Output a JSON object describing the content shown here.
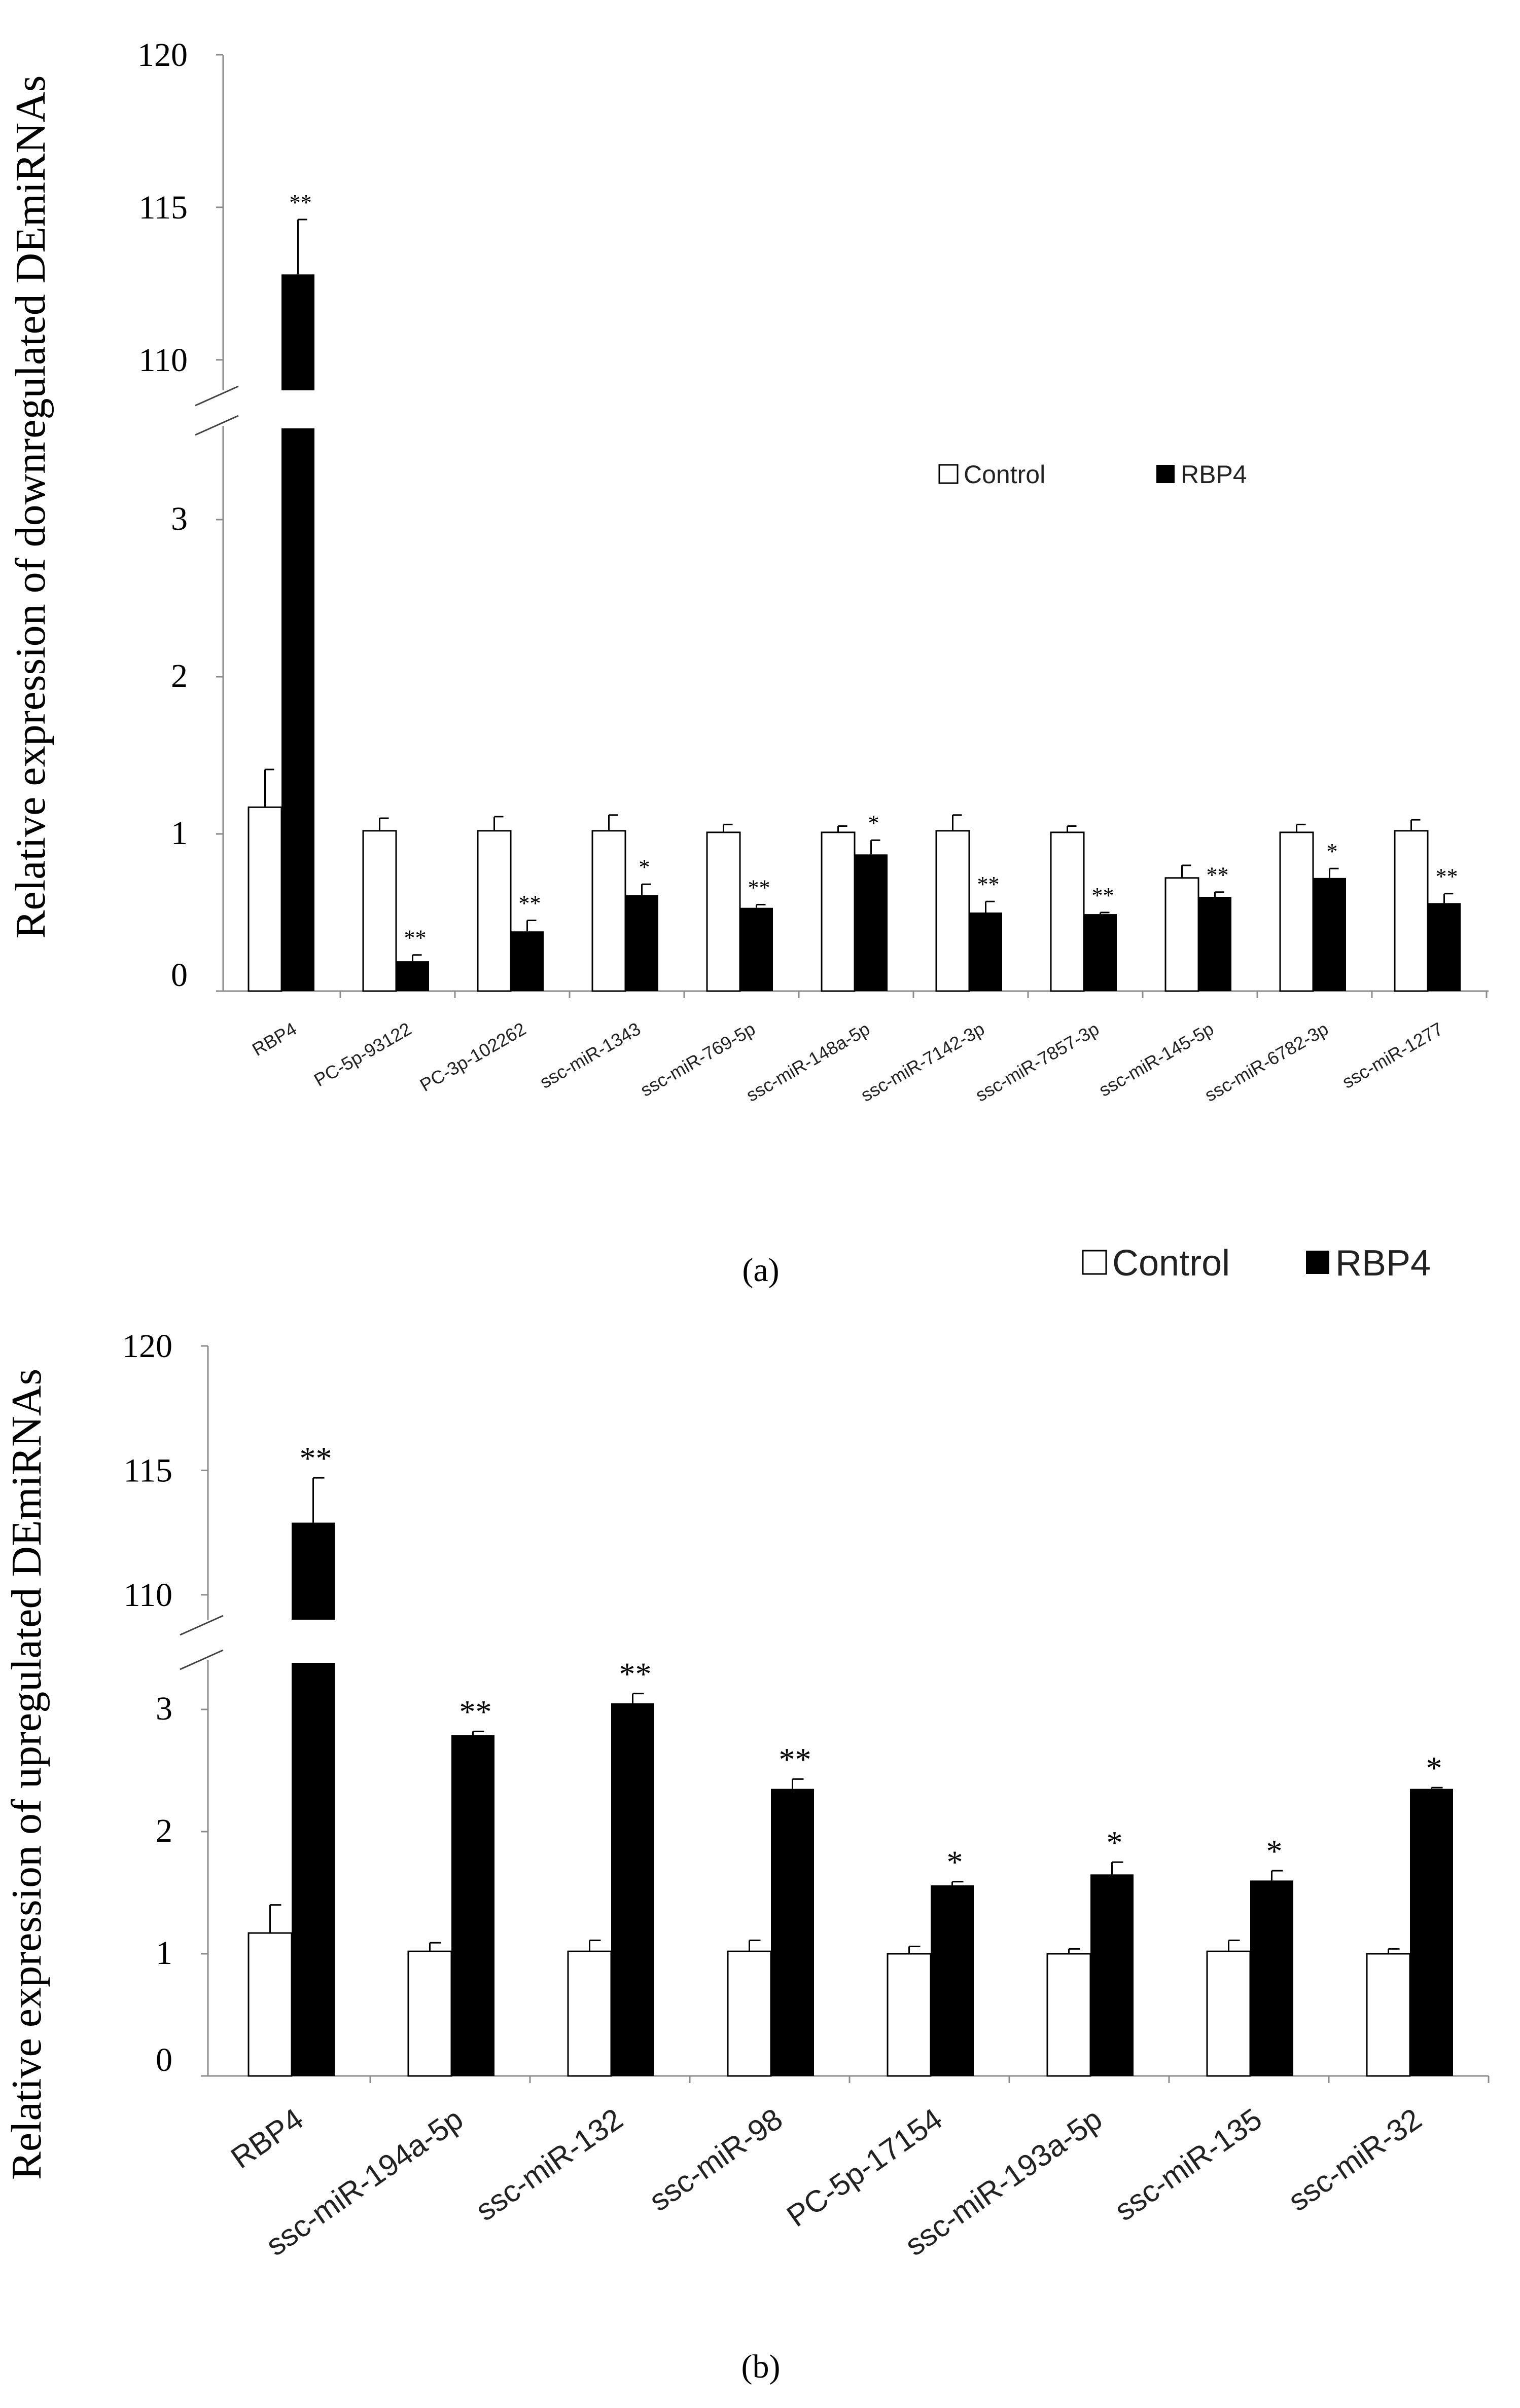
{
  "colors": {
    "axis": "#8c8c8c",
    "control": "#ffffff",
    "rbp4": "#000000",
    "text": "#000000"
  },
  "charts": [
    {
      "caption": "(a)",
      "chart_data": {
        "type": "bar",
        "ylabel": "Relative expression of downregulated DEmiRNAs",
        "xlabel": "",
        "broken_axis": true,
        "ylim_lower": [
          0,
          3.5
        ],
        "ylim_upper": [
          109,
          120
        ],
        "yticks_lower": [
          0,
          1,
          2,
          3
        ],
        "yticks_upper": [
          110,
          115,
          120
        ],
        "legend": [
          "Control",
          "RBP4"
        ],
        "legend_position": "top-right",
        "categories": [
          "RBP4",
          "PC-5p-93122",
          "PC-3p-102262",
          "ssc-miR-1343",
          "ssc-miR-769-5p",
          "ssc-miR-148a-5p",
          "ssc-miR-7142-3p",
          "ssc-miR-7857-3p",
          "ssc-miR-145-5p",
          "ssc-miR-6782-3p",
          "ssc-miR-1277"
        ],
        "series": [
          {
            "name": "Control",
            "values": [
              1.17,
              1.02,
              1.02,
              1.02,
              1.01,
              1.01,
              1.02,
              1.01,
              0.72,
              1.01,
              1.02
            ],
            "errors": [
              0.24,
              0.08,
              0.09,
              0.1,
              0.05,
              0.04,
              0.1,
              0.04,
              0.08,
              0.05,
              0.07
            ]
          },
          {
            "name": "RBP4",
            "values": [
              112.8,
              0.19,
              0.38,
              0.61,
              0.53,
              0.87,
              0.5,
              0.49,
              0.6,
              0.72,
              0.56
            ],
            "errors": [
              1.8,
              0.04,
              0.07,
              0.07,
              0.02,
              0.09,
              0.07,
              0.01,
              0.03,
              0.06,
              0.06
            ]
          }
        ],
        "significance": [
          "**",
          "**",
          "**",
          "*",
          "**",
          "*",
          "**",
          "**",
          "**",
          "*",
          "**"
        ]
      }
    },
    {
      "caption": "(b)",
      "chart_data": {
        "type": "bar",
        "ylabel": "Relative expression of upregulated DEmiRNAs",
        "xlabel": "",
        "broken_axis": true,
        "ylim_lower": [
          0,
          3.5
        ],
        "ylim_upper": [
          109,
          120
        ],
        "yticks_lower": [
          0,
          1,
          2,
          3
        ],
        "yticks_upper": [
          110,
          115,
          120
        ],
        "legend": [
          "Control",
          "RBP4"
        ],
        "legend_position": "top-right",
        "categories": [
          "RBP4",
          "ssc-miR-194a-5p",
          "ssc-miR-132",
          "ssc-miR-98",
          "PC-5p-17154",
          "ssc-miR-193a-5p",
          "ssc-miR-135",
          "ssc-miR-32"
        ],
        "series": [
          {
            "name": "Control",
            "values": [
              1.17,
              1.02,
              1.02,
              1.02,
              1.0,
              1.0,
              1.02,
              1.0
            ],
            "errors": [
              0.23,
              0.07,
              0.09,
              0.09,
              0.06,
              0.04,
              0.09,
              0.04
            ]
          },
          {
            "name": "RBP4",
            "values": [
              112.9,
              2.79,
              3.05,
              2.35,
              1.56,
              1.65,
              1.6,
              2.35
            ],
            "errors": [
              1.8,
              0.03,
              0.08,
              0.08,
              0.03,
              0.1,
              0.08,
              0.01
            ]
          }
        ],
        "significance": [
          "**",
          "**",
          "**",
          "**",
          "*",
          "*",
          "*",
          "*"
        ]
      }
    }
  ]
}
